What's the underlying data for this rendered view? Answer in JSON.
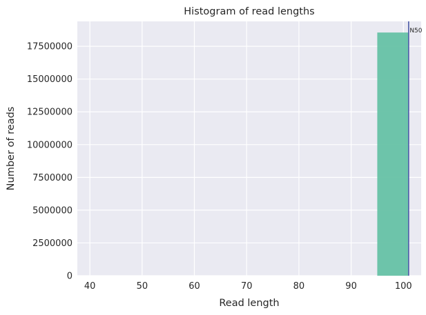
{
  "chart_data": {
    "type": "bar",
    "title": "Histogram of read lengths",
    "xlabel": "Read length",
    "ylabel": "Number of reads",
    "xlim": [
      37.6,
      103.4
    ],
    "ylim": [
      0,
      19400000
    ],
    "xticks": [
      40,
      50,
      60,
      70,
      80,
      90,
      100
    ],
    "yticks": [
      0,
      2500000,
      5000000,
      7500000,
      10000000,
      12500000,
      15000000,
      17500000
    ],
    "bins": [
      {
        "x0": 95,
        "x1": 101,
        "count": 18550000
      }
    ],
    "vline": {
      "x": 101,
      "label": "N50",
      "color": "#4c5aa8"
    },
    "bar_color": "#66c2a5",
    "plot_bg": "#eaeaf2",
    "grid_color": "#ffffff",
    "grid": true,
    "legend": "none"
  }
}
